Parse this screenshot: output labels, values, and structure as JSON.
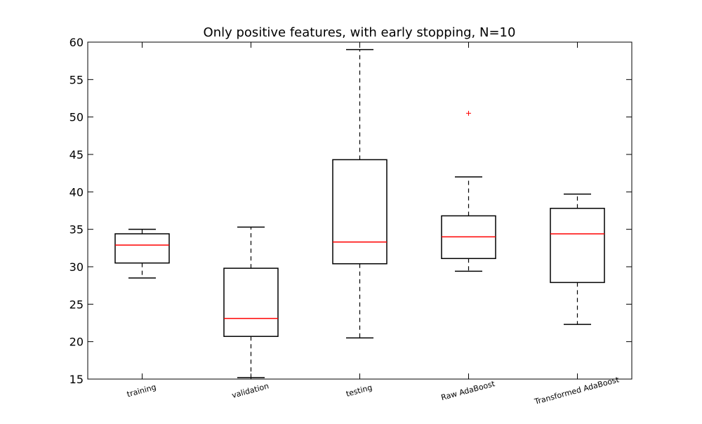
{
  "chart_data": {
    "type": "box",
    "title": "Only positive features, with early stopping, N=10",
    "xlabel": "",
    "ylabel": "",
    "ylim": [
      15,
      60
    ],
    "yticks": [
      15,
      20,
      25,
      30,
      35,
      40,
      45,
      50,
      55,
      60
    ],
    "grid": false,
    "categories": [
      "training",
      "validation",
      "testing",
      "Raw AdaBoost",
      "Transformed AdaBoost"
    ],
    "boxes": [
      {
        "whisker_low": 28.5,
        "q1": 30.5,
        "median": 32.9,
        "q3": 34.4,
        "whisker_high": 35.0,
        "outliers": []
      },
      {
        "whisker_low": 15.2,
        "q1": 20.7,
        "median": 23.1,
        "q3": 29.8,
        "whisker_high": 35.3,
        "outliers": []
      },
      {
        "whisker_low": 20.5,
        "q1": 30.4,
        "median": 33.3,
        "q3": 44.3,
        "whisker_high": 59.0,
        "outliers": []
      },
      {
        "whisker_low": 29.4,
        "q1": 31.1,
        "median": 34.0,
        "q3": 36.8,
        "whisker_high": 42.0,
        "outliers": [
          50.5
        ]
      },
      {
        "whisker_low": 22.3,
        "q1": 27.9,
        "median": 34.4,
        "q3": 37.8,
        "whisker_high": 39.7,
        "outliers": []
      }
    ],
    "colors": {
      "box": "#000000",
      "median": "#ff0000",
      "outlier": "#ff0000",
      "frame": "#000000"
    }
  }
}
